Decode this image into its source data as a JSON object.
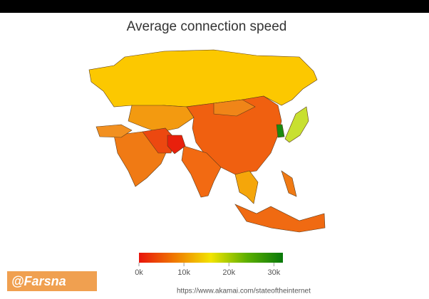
{
  "chart_data": {
    "type": "map",
    "title": "Average connection speed",
    "colorbar": {
      "clim": [
        0,
        32000
      ],
      "ticks": [
        {
          "value": 0,
          "label": "0k"
        },
        {
          "value": 10000,
          "label": "10k"
        },
        {
          "value": 20000,
          "label": "20k"
        },
        {
          "value": 30000,
          "label": "30k"
        }
      ],
      "colors": [
        "#e8140c",
        "#f07a00",
        "#f2e400",
        "#5cb000",
        "#08780a"
      ]
    }
  },
  "watermark": "@Farsna",
  "source": "https://www.akamai.com/stateoftheinternet"
}
